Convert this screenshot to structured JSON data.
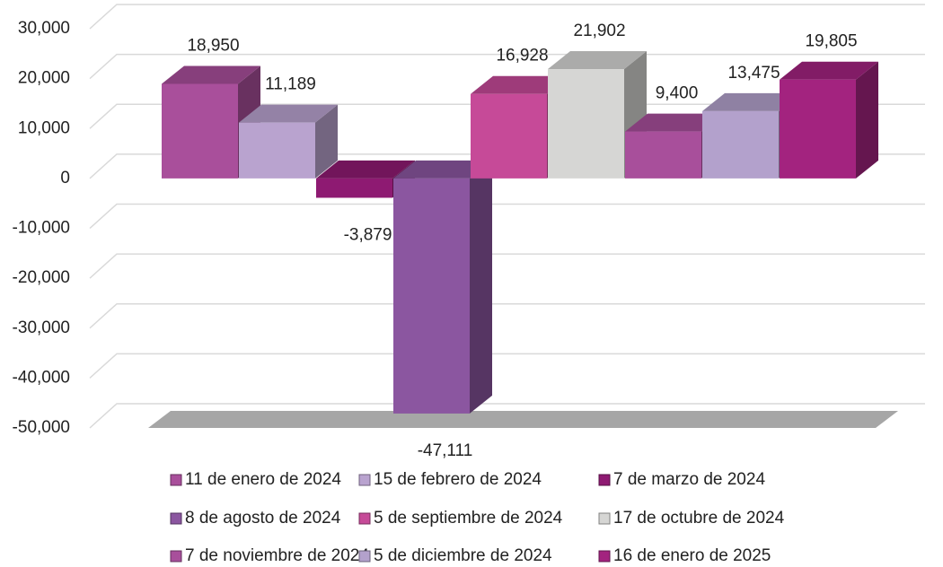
{
  "chart_data": {
    "type": "bar",
    "ylim": [
      -50000,
      30000
    ],
    "yticks": [
      {
        "value": -50000,
        "label": "-50,000"
      },
      {
        "value": -40000,
        "label": "-40,000"
      },
      {
        "value": -30000,
        "label": "-30,000"
      },
      {
        "value": -20000,
        "label": "-20,000"
      },
      {
        "value": -10000,
        "label": "-10,000"
      },
      0,
      {
        "value": 10000,
        "label": "10,000"
      },
      {
        "value": 20000,
        "label": "20,000"
      },
      {
        "value": 30000,
        "label": "30,000"
      }
    ],
    "grid": true,
    "legend": "bottom",
    "series": [
      {
        "name": "11 de enero de 2024",
        "color": "#a94f9b",
        "values": [
          18950
        ],
        "value_labels": [
          "18,950"
        ]
      },
      {
        "name": "15 de febrero de 2024",
        "color": "#b9a3cf",
        "values": [
          11189
        ],
        "value_labels": [
          "11,189"
        ]
      },
      {
        "name": "7 de marzo de 2024",
        "color": "#8e1a72",
        "values": [
          -3879
        ],
        "value_labels": [
          "-3,879"
        ]
      },
      {
        "name": "8 de agosto de 2024",
        "color": "#8b56a0",
        "values": [
          -47111
        ],
        "value_labels": [
          "-47,111"
        ]
      },
      {
        "name": "5 de septiembre de 2024",
        "color": "#c64a98",
        "values": [
          16928
        ],
        "value_labels": [
          "16,928"
        ]
      },
      {
        "name": "17 de octubre de 2024",
        "color": "#d6d6d4",
        "values": [
          21902
        ],
        "value_labels": [
          "21,902"
        ]
      },
      {
        "name": "7 de noviembre de 2024",
        "color": "#a84f9b",
        "values": [
          9400
        ],
        "value_labels": [
          "9,400"
        ]
      },
      {
        "name": "5 de diciembre de 2024",
        "color": "#b3a1cc",
        "values": [
          13475
        ],
        "value_labels": [
          "13,475"
        ]
      },
      {
        "name": "16 de enero de 2025",
        "color": "#a3237f",
        "values": [
          19805
        ],
        "value_labels": [
          "19,805"
        ]
      }
    ]
  }
}
